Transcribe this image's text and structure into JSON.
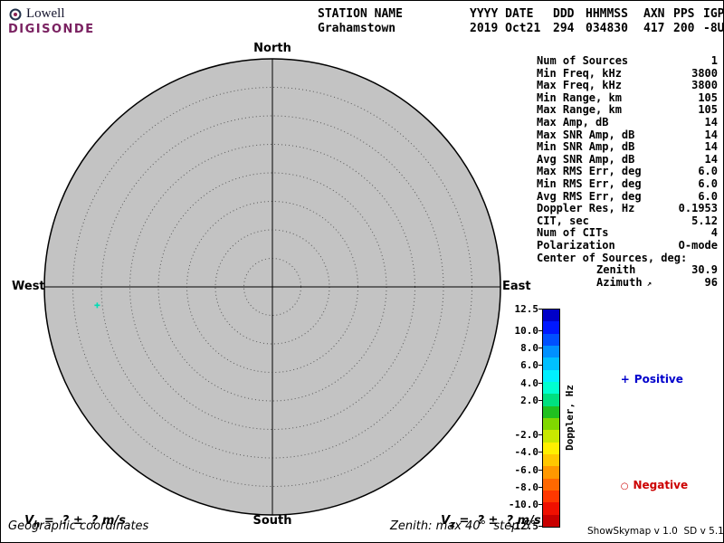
{
  "logo": {
    "line1": "Lowell",
    "line2": "DIGISONDE",
    "brand_color": "#7a2161"
  },
  "header": {
    "columns": [
      {
        "label": "STATION NAME",
        "value": "Grahamstown"
      },
      {
        "label": "YYYY DATE",
        "value": "2019 Oct21"
      },
      {
        "label": "DDD",
        "value": "294"
      },
      {
        "label": "HHMMSS",
        "value": "034830"
      },
      {
        "label": "AXN",
        "value": "417"
      },
      {
        "label": "PPS",
        "value": "200"
      },
      {
        "label": "IGP",
        "value": "-8U"
      }
    ]
  },
  "skymap": {
    "cardinal": {
      "north": "North",
      "south": "South",
      "east": "East",
      "west": "West"
    },
    "max_zenith_deg": 40,
    "step_deg": 5,
    "rings": 8,
    "fill_color": "#c3c3c3",
    "sources": [
      {
        "zenith_deg": 30.9,
        "azimuth_deg": 96,
        "sign": "positive",
        "color": "#00dcb4"
      }
    ]
  },
  "info": {
    "rows": [
      {
        "label": "Num of Sources",
        "value": "1"
      },
      {
        "label": "Min Freq, kHz",
        "value": "3800"
      },
      {
        "label": "Max Freq, kHz",
        "value": "3800"
      },
      {
        "label": "Min Range, km",
        "value": "105"
      },
      {
        "label": "Max Range, km",
        "value": "105"
      },
      {
        "label": "Max Amp, dB",
        "value": "14"
      },
      {
        "label": "Max SNR Amp, dB",
        "value": "14"
      },
      {
        "label": "Min SNR Amp, dB",
        "value": "14"
      },
      {
        "label": "Avg SNR Amp, dB",
        "value": "14"
      },
      {
        "label": "Max RMS Err, deg",
        "value": "6.0"
      },
      {
        "label": "Min RMS Err, deg",
        "value": "6.0"
      },
      {
        "label": "Avg RMS Err, deg",
        "value": "6.0"
      },
      {
        "label": "Doppler Res, Hz",
        "value": "0.1953"
      },
      {
        "label": "CIT, sec",
        "value": "5.12"
      },
      {
        "label": "Num of CITs",
        "value": "4"
      },
      {
        "label": "Polarization",
        "value": "O-mode"
      },
      {
        "label": "Center of Sources, deg:",
        "value": ""
      },
      {
        "label": "Zenith",
        "value": "30.9",
        "indent": true
      },
      {
        "label": "Azimuth",
        "value": "96",
        "indent": true,
        "icon": "↗"
      }
    ]
  },
  "colorbar": {
    "title": "Doppler, Hz",
    "max": 12.5,
    "min": -12.5,
    "ticks": [
      "12.5",
      "10.0",
      "8.0",
      "6.0",
      "4.0",
      "2.0",
      "-2.0",
      "-4.0",
      "-6.0",
      "-8.0",
      "-10.0",
      "-12.5"
    ],
    "tick_values": [
      12.5,
      10,
      8,
      6,
      4,
      2,
      -2,
      -4,
      -6,
      -8,
      -10,
      -12.5
    ],
    "colors": [
      "#0000c8",
      "#0018ff",
      "#0050ff",
      "#0090ff",
      "#00c0ff",
      "#00f0ff",
      "#00ffd0",
      "#00e080",
      "#20c020",
      "#80d800",
      "#c8e800",
      "#fff000",
      "#ffc800",
      "#ff9800",
      "#ff6800",
      "#ff3800",
      "#f01000",
      "#c80000"
    ]
  },
  "legend": {
    "positive": {
      "marker": "+",
      "label": "Positive",
      "color": "#0000cc"
    },
    "negative": {
      "marker": "○",
      "label": "Negative",
      "color": "#cc0000"
    }
  },
  "footer": {
    "vh": {
      "sym": "V",
      "sub": "h",
      "rest": " =  ? ±  ? m/s"
    },
    "vz": {
      "sym": "V",
      "sub": "z",
      "rest": " =  ? ±  ? m/s"
    },
    "coords": "Geographic coordinates",
    "zenith_note": "Zenith: max 40°  step 5°",
    "version": "ShowSkymap v 1.0  SD v 5.1"
  }
}
